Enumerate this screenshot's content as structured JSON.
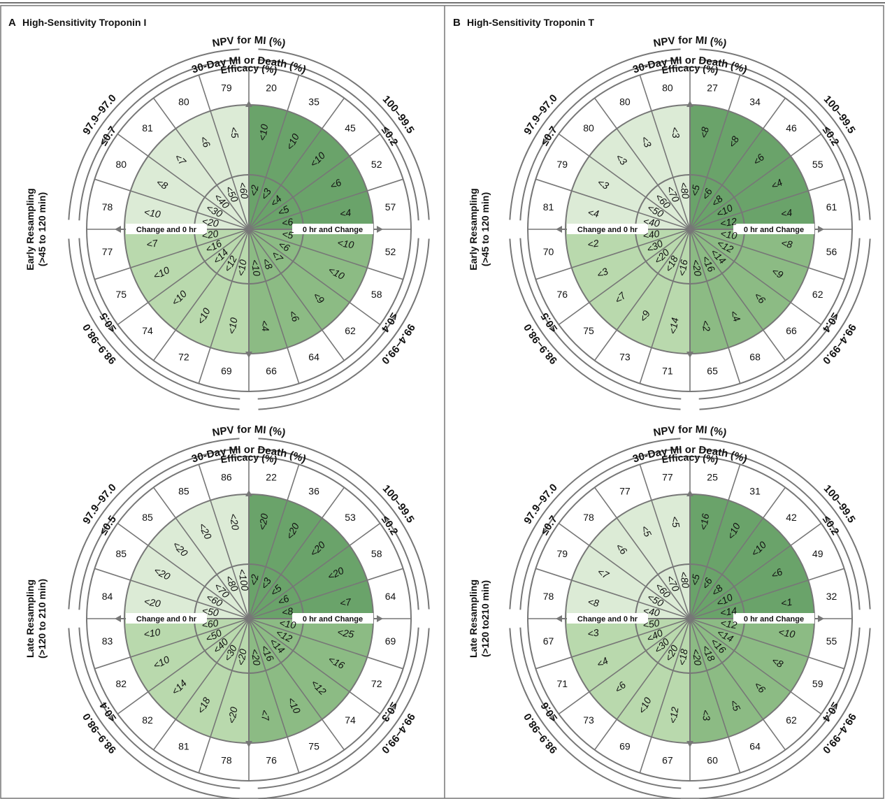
{
  "panels": [
    {
      "letter": "A",
      "title": "High-Sensitivity Troponin I"
    },
    {
      "letter": "B",
      "title": "High-Sensitivity Troponin T"
    }
  ],
  "row_labels": [
    [
      "Early Resampling",
      "(>45 to 120 min)"
    ],
    [
      "Late Resampling",
      "(>120 to 210 min)"
    ]
  ],
  "row_labels_b": [
    [
      "Early Resampling",
      "(>45 to 120 min)"
    ],
    [
      "Late Resampling",
      "(>120 to210 min)"
    ]
  ],
  "ring_titles": {
    "npv": "NPV for MI (%)",
    "death": "30-Day MI or Death (%)",
    "efficacy": "Efficacy (%)"
  },
  "axis_labels": {
    "left": "Change and 0 hr",
    "right": "0 hr and Change"
  },
  "colors": {
    "rule_in_dark": "#6aa36a",
    "rule_in_mid": "#8cbb84",
    "rule_out_light": "#dcebd6",
    "rule_out_mid": "#b9d9ad",
    "ring": "#777777"
  },
  "chart_data": [
    {
      "type": "radial",
      "panel": "A",
      "row": "Early Resampling",
      "quadrant_labels": {
        "ne_npv": "100–99.5",
        "ne_death": "≤0.2",
        "se_npv": "99.4–99.0",
        "se_death": "≤0.4",
        "sw_npv": "98.9–98.0",
        "sw_death": "≤0.5",
        "nw_npv": "97.9–97.0",
        "nw_death": "≤0.7"
      },
      "efficacy": [
        "20",
        "35",
        "45",
        "52",
        "57",
        "52",
        "58",
        "62",
        "64",
        "66",
        "69",
        "72",
        "74",
        "75",
        "77",
        "78",
        "80",
        "81",
        "80",
        "79"
      ],
      "change": [
        "<10",
        "<10",
        "<10",
        "<6",
        "<4",
        "<10",
        "<10",
        "<9",
        "<6",
        "<4",
        "<10",
        "<10",
        "<10",
        "<10",
        "<7",
        "<10",
        "<8",
        "<7",
        "<6",
        "<5"
      ],
      "zero_hr": [
        "<2",
        "<3",
        "<4",
        "<5",
        "<6",
        "<5",
        "<6",
        "<7",
        "<8",
        "<10",
        "<10",
        "<12",
        "<14",
        "<16",
        "<20",
        "<20",
        "<30",
        "<40",
        "<50",
        "<60"
      ]
    },
    {
      "type": "radial",
      "panel": "B",
      "row": "Early Resampling",
      "quadrant_labels": {
        "ne_npv": "100–99.5",
        "ne_death": "≤0.2",
        "se_npv": "99.4–99.0",
        "se_death": "≤0.4",
        "sw_npv": "98.9–98.0",
        "sw_death": "≤0.5",
        "nw_npv": "97.9–97.0",
        "nw_death": "≤0.7"
      },
      "efficacy": [
        "27",
        "34",
        "46",
        "55",
        "61",
        "56",
        "62",
        "66",
        "68",
        "65",
        "71",
        "73",
        "75",
        "76",
        "70",
        "81",
        "79",
        "80",
        "80",
        "80"
      ],
      "change": [
        "<8",
        "<8",
        "<6",
        "<4",
        "<4",
        "<8",
        "<9",
        "<6",
        "<4",
        "<2",
        "<14",
        "<9",
        "<7",
        "<3",
        "<2",
        "<4",
        "<3",
        "<3",
        "<3",
        "<3"
      ],
      "zero_hr": [
        "<5",
        "<6",
        "<8",
        "<10",
        "<12",
        "<10",
        "<12",
        "<14",
        "<16",
        "<20",
        "<16",
        "<18",
        "<20",
        "<30",
        "<40",
        "<40",
        "<50",
        "<60",
        "<70",
        "<80"
      ]
    },
    {
      "type": "radial",
      "panel": "A",
      "row": "Late Resampling",
      "quadrant_labels": {
        "ne_npv": "100–99.5",
        "ne_death": "≤0.2",
        "se_npv": "99.4–99.0",
        "se_death": "≤0.3",
        "sw_npv": "98.9–98.0",
        "sw_death": "≤0.4",
        "nw_npv": "97.9–97.0",
        "nw_death": "≤0.5"
      },
      "efficacy": [
        "22",
        "36",
        "53",
        "58",
        "64",
        "69",
        "72",
        "74",
        "75",
        "76",
        "78",
        "81",
        "82",
        "82",
        "83",
        "84",
        "85",
        "85",
        "85",
        "86"
      ],
      "change": [
        "<20",
        "<20",
        "<20",
        "<20",
        "<7",
        "<25",
        "<16",
        "<12",
        "<10",
        "<7",
        "<20",
        "<18",
        "<14",
        "<10",
        "<10",
        "<20",
        "<20",
        "<20",
        "<20",
        "<20"
      ],
      "zero_hr": [
        "<2",
        "<3",
        "<5",
        "<6",
        "<8",
        "<10",
        "<12",
        "<14",
        "<16",
        "<20",
        "<20",
        "<30",
        "<40",
        "<50",
        "<60",
        "<50",
        "<60",
        "<70",
        "<80",
        "<100"
      ]
    },
    {
      "type": "radial",
      "panel": "B",
      "row": "Late Resampling",
      "quadrant_labels": {
        "ne_npv": "100–99.5",
        "ne_death": "≤0.2",
        "se_npv": "99.4–99.0",
        "se_death": "≤0.4",
        "sw_npv": "98.9–98.0",
        "sw_death": "≤0.6",
        "nw_npv": "97.9–97.0",
        "nw_death": "≤0.7"
      },
      "efficacy": [
        "25",
        "31",
        "42",
        "49",
        "32",
        "55",
        "59",
        "62",
        "64",
        "60",
        "67",
        "69",
        "73",
        "71",
        "67",
        "78",
        "79",
        "78",
        "77",
        "77"
      ],
      "change": [
        "<16",
        "<10",
        "<10",
        "<6",
        "<1",
        "<10",
        "<8",
        "<6",
        "<5",
        "<3",
        "<12",
        "<10",
        "<6",
        "<4",
        "<3",
        "<8",
        "<7",
        "<6",
        "<5",
        "<5"
      ],
      "zero_hr": [
        "<5",
        "<6",
        "<8",
        "<10",
        "<14",
        "<12",
        "<14",
        "<16",
        "<18",
        "<20",
        "<18",
        "<20",
        "<30",
        "<40",
        "<50",
        "<40",
        "<50",
        "<60",
        "<70",
        "<80"
      ]
    }
  ]
}
